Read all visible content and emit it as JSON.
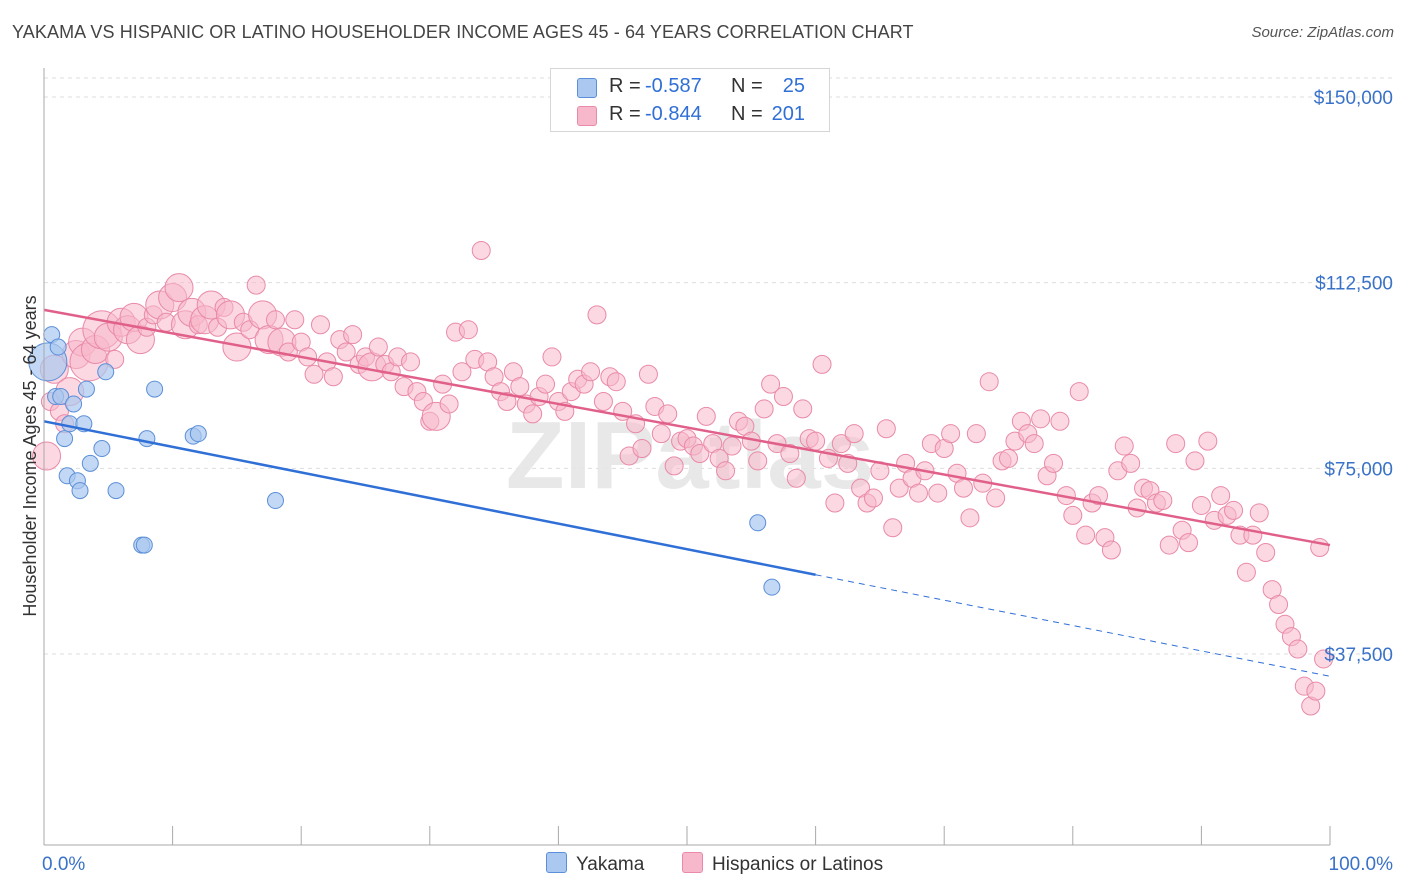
{
  "title": "YAKAMA VS HISPANIC OR LATINO HOUSEHOLDER INCOME AGES 45 - 64 YEARS CORRELATION CHART",
  "source": "Source: ZipAtlas.com",
  "legend": {
    "rows": [
      {
        "r_label": "R =",
        "r_value": "-0.587",
        "n_label": "N =",
        "n_value": "25"
      },
      {
        "r_label": "R =",
        "r_value": "-0.844",
        "n_label": "N =",
        "n_value": "201"
      }
    ]
  },
  "bottom_legend": {
    "series1": "Yakama",
    "series2": "Hispanics or Latinos"
  },
  "colors": {
    "yakama_fill": "#aac8f0",
    "yakama_stroke": "#5b8fd8",
    "yakama_line": "#2f6fd6",
    "hispanic_fill": "#f7b8cb",
    "hispanic_stroke": "#e98aa8",
    "hispanic_line": "#e0608a",
    "axis_label_blue": "#3a72c8",
    "grid": "#dddddd"
  },
  "watermark": "ZIPatlas",
  "chart_data": {
    "type": "scatter",
    "xlabel": "",
    "ylabel": "Householder Income Ages 45 - 64 years",
    "x_tick_labels": [
      "0.0%",
      "100.0%"
    ],
    "y_tick_labels": [
      "$37,500",
      "$75,000",
      "$112,500",
      "$150,000"
    ],
    "y_ticks": [
      37500,
      75000,
      112500,
      150000
    ],
    "xlim": [
      0,
      100
    ],
    "ylim": [
      0,
      155000
    ],
    "grid": true,
    "legend_position": "top-center",
    "series": [
      {
        "name": "Yakama",
        "trend": {
          "x0": 0,
          "y0": 84500,
          "x1": 60,
          "y1": 53500,
          "dashed_to_x": 100,
          "dashed_to_y": 33000
        },
        "points": [
          [
            0.3,
            96500,
            3
          ],
          [
            0.6,
            102000,
            1
          ],
          [
            0.9,
            89500,
            1
          ],
          [
            1.1,
            99500,
            1
          ],
          [
            1.3,
            89500,
            1
          ],
          [
            1.6,
            81000,
            1
          ],
          [
            1.8,
            73500,
            1
          ],
          [
            2.0,
            84000,
            1
          ],
          [
            2.3,
            88000,
            1
          ],
          [
            2.6,
            72500,
            1
          ],
          [
            2.8,
            70500,
            1
          ],
          [
            3.1,
            84000,
            1
          ],
          [
            3.3,
            91000,
            1
          ],
          [
            3.6,
            76000,
            1
          ],
          [
            4.5,
            79000,
            1
          ],
          [
            4.8,
            94500,
            1
          ],
          [
            5.6,
            70500,
            1
          ],
          [
            7.6,
            59500,
            1
          ],
          [
            7.8,
            59500,
            1
          ],
          [
            8.0,
            81000,
            1
          ],
          [
            8.6,
            91000,
            1
          ],
          [
            11.6,
            81500,
            1
          ],
          [
            12.0,
            82000,
            1
          ],
          [
            18.0,
            68500,
            1
          ],
          [
            55.5,
            64000,
            1
          ],
          [
            56.6,
            51000,
            1
          ]
        ]
      },
      {
        "name": "Hispanics or Latinos",
        "trend": {
          "x0": 0,
          "y0": 107000,
          "x1": 100,
          "y1": 59500
        },
        "points": [
          [
            0.2,
            77500,
            2
          ],
          [
            0.5,
            88500,
            1
          ],
          [
            0.8,
            95000,
            2
          ],
          [
            1.2,
            86500,
            1
          ],
          [
            1.6,
            84000,
            1
          ],
          [
            2.0,
            90500,
            2
          ],
          [
            2.5,
            98000,
            2
          ],
          [
            3.0,
            100500,
            2
          ],
          [
            3.5,
            96500,
            3
          ],
          [
            4.0,
            99000,
            2
          ],
          [
            4.5,
            103000,
            3
          ],
          [
            5.0,
            101500,
            2
          ],
          [
            5.5,
            97000,
            1
          ],
          [
            6.0,
            104500,
            2
          ],
          [
            6.5,
            103000,
            2
          ],
          [
            7.0,
            105500,
            2
          ],
          [
            7.5,
            101000,
            2
          ],
          [
            8.0,
            103500,
            1
          ],
          [
            8.5,
            106000,
            1
          ],
          [
            9.0,
            108000,
            2
          ],
          [
            9.5,
            104500,
            1
          ],
          [
            10.0,
            109500,
            2
          ],
          [
            10.5,
            111500,
            2
          ],
          [
            11.0,
            104000,
            2
          ],
          [
            11.5,
            106500,
            2
          ],
          [
            12.0,
            104000,
            1
          ],
          [
            12.5,
            105000,
            2
          ],
          [
            13.0,
            108000,
            2
          ],
          [
            13.5,
            103500,
            1
          ],
          [
            14.0,
            107500,
            1
          ],
          [
            14.5,
            106000,
            2
          ],
          [
            15.0,
            99500,
            2
          ],
          [
            15.5,
            104500,
            1
          ],
          [
            16.0,
            103000,
            1
          ],
          [
            16.5,
            112000,
            1
          ],
          [
            17.0,
            106000,
            2
          ],
          [
            17.5,
            101000,
            2
          ],
          [
            18.0,
            105000,
            1
          ],
          [
            18.5,
            100500,
            2
          ],
          [
            19.0,
            98500,
            1
          ],
          [
            19.5,
            105000,
            1
          ],
          [
            20.0,
            100500,
            1
          ],
          [
            20.5,
            97500,
            1
          ],
          [
            21.0,
            94000,
            1
          ],
          [
            21.5,
            104000,
            1
          ],
          [
            22.0,
            96500,
            1
          ],
          [
            22.5,
            93500,
            1
          ],
          [
            23.0,
            101000,
            1
          ],
          [
            23.5,
            98500,
            1
          ],
          [
            24.0,
            102000,
            1
          ],
          [
            24.5,
            96000,
            1
          ],
          [
            25.0,
            97500,
            1
          ],
          [
            25.5,
            95500,
            2
          ],
          [
            26.0,
            99500,
            1
          ],
          [
            26.5,
            96000,
            1
          ],
          [
            27.0,
            94500,
            1
          ],
          [
            27.5,
            97500,
            1
          ],
          [
            28.0,
            91500,
            1
          ],
          [
            28.5,
            96500,
            1
          ],
          [
            29.0,
            90500,
            1
          ],
          [
            29.5,
            88500,
            1
          ],
          [
            30.0,
            84500,
            1
          ],
          [
            30.5,
            85500,
            2
          ],
          [
            31.0,
            92000,
            1
          ],
          [
            31.5,
            88000,
            1
          ],
          [
            32.0,
            102500,
            1
          ],
          [
            32.5,
            94500,
            1
          ],
          [
            33.0,
            103000,
            1
          ],
          [
            33.5,
            97000,
            1
          ],
          [
            34.0,
            119000,
            1
          ],
          [
            34.5,
            96500,
            1
          ],
          [
            35.0,
            93500,
            1
          ],
          [
            35.5,
            90500,
            1
          ],
          [
            36.0,
            88500,
            1
          ],
          [
            36.5,
            94500,
            1
          ],
          [
            37.0,
            91500,
            1
          ],
          [
            37.5,
            88000,
            1
          ],
          [
            38.0,
            86000,
            1
          ],
          [
            38.5,
            89500,
            1
          ],
          [
            39.0,
            92000,
            1
          ],
          [
            39.5,
            97500,
            1
          ],
          [
            40.0,
            88500,
            1
          ],
          [
            40.5,
            86500,
            1
          ],
          [
            41.0,
            90500,
            1
          ],
          [
            41.5,
            93000,
            1
          ],
          [
            42.0,
            92000,
            1
          ],
          [
            42.5,
            94500,
            1
          ],
          [
            43.0,
            106000,
            1
          ],
          [
            43.5,
            88500,
            1
          ],
          [
            44.0,
            93500,
            1
          ],
          [
            44.5,
            92500,
            1
          ],
          [
            45.0,
            86500,
            1
          ],
          [
            45.5,
            77500,
            1
          ],
          [
            46.0,
            84000,
            1
          ],
          [
            46.5,
            79000,
            1
          ],
          [
            47.0,
            94000,
            1
          ],
          [
            47.5,
            87500,
            1
          ],
          [
            48.0,
            82000,
            1
          ],
          [
            48.5,
            86000,
            1
          ],
          [
            49.0,
            75500,
            1
          ],
          [
            49.5,
            80500,
            1
          ],
          [
            50.0,
            81000,
            1
          ],
          [
            50.5,
            79500,
            1
          ],
          [
            51.0,
            78000,
            1
          ],
          [
            51.5,
            85500,
            1
          ],
          [
            52.0,
            80000,
            1
          ],
          [
            52.5,
            77000,
            1
          ],
          [
            53.0,
            74500,
            1
          ],
          [
            53.5,
            79500,
            1
          ],
          [
            54.0,
            84500,
            1
          ],
          [
            54.5,
            83500,
            1
          ],
          [
            55.0,
            80500,
            1
          ],
          [
            55.5,
            76500,
            1
          ],
          [
            56.0,
            87000,
            1
          ],
          [
            56.5,
            92000,
            1
          ],
          [
            57.0,
            80000,
            1
          ],
          [
            57.5,
            89500,
            1
          ],
          [
            58.0,
            78000,
            1
          ],
          [
            58.5,
            73000,
            1
          ],
          [
            59.0,
            87000,
            1
          ],
          [
            59.5,
            81000,
            1
          ],
          [
            60.0,
            80500,
            1
          ],
          [
            60.5,
            96000,
            1
          ],
          [
            61.0,
            77000,
            1
          ],
          [
            61.5,
            68000,
            1
          ],
          [
            62.0,
            80000,
            1
          ],
          [
            62.5,
            76000,
            1
          ],
          [
            63.0,
            82000,
            1
          ],
          [
            63.5,
            71000,
            1
          ],
          [
            64.0,
            68000,
            1
          ],
          [
            64.5,
            69000,
            1
          ],
          [
            65.0,
            74500,
            1
          ],
          [
            65.5,
            83000,
            1
          ],
          [
            66.0,
            63000,
            1
          ],
          [
            66.5,
            71000,
            1
          ],
          [
            67.0,
            76000,
            1
          ],
          [
            67.5,
            73000,
            1
          ],
          [
            68.0,
            70000,
            1
          ],
          [
            68.5,
            74500,
            1
          ],
          [
            69.0,
            80000,
            1
          ],
          [
            69.5,
            70000,
            1
          ],
          [
            70.0,
            79000,
            1
          ],
          [
            70.5,
            82000,
            1
          ],
          [
            71.0,
            74000,
            1
          ],
          [
            71.5,
            71000,
            1
          ],
          [
            72.0,
            65000,
            1
          ],
          [
            72.5,
            82000,
            1
          ],
          [
            73.0,
            72000,
            1
          ],
          [
            73.5,
            92500,
            1
          ],
          [
            74.0,
            69000,
            1
          ],
          [
            74.5,
            76500,
            1
          ],
          [
            75.0,
            77000,
            1
          ],
          [
            75.5,
            80500,
            1
          ],
          [
            76.0,
            84500,
            1
          ],
          [
            76.5,
            82000,
            1
          ],
          [
            77.0,
            80000,
            1
          ],
          [
            77.5,
            85000,
            1
          ],
          [
            78.0,
            73500,
            1
          ],
          [
            78.5,
            76000,
            1
          ],
          [
            79.0,
            84500,
            1
          ],
          [
            79.5,
            69500,
            1
          ],
          [
            80.0,
            65500,
            1
          ],
          [
            80.5,
            90500,
            1
          ],
          [
            81.0,
            61500,
            1
          ],
          [
            81.5,
            68000,
            1
          ],
          [
            82.0,
            69500,
            1
          ],
          [
            82.5,
            61000,
            1
          ],
          [
            83.0,
            58500,
            1
          ],
          [
            83.5,
            74500,
            1
          ],
          [
            84.0,
            79500,
            1
          ],
          [
            84.5,
            76000,
            1
          ],
          [
            85.0,
            67000,
            1
          ],
          [
            85.5,
            71000,
            1
          ],
          [
            86.0,
            70500,
            1
          ],
          [
            86.5,
            68000,
            1
          ],
          [
            87.0,
            68500,
            1
          ],
          [
            87.5,
            59500,
            1
          ],
          [
            88.0,
            80000,
            1
          ],
          [
            88.5,
            62500,
            1
          ],
          [
            89.0,
            60000,
            1
          ],
          [
            89.5,
            76500,
            1
          ],
          [
            90.0,
            67500,
            1
          ],
          [
            90.5,
            80500,
            1
          ],
          [
            91.0,
            64500,
            1
          ],
          [
            91.5,
            69500,
            1
          ],
          [
            92.0,
            65500,
            1
          ],
          [
            92.5,
            66500,
            1
          ],
          [
            93.0,
            61500,
            1
          ],
          [
            93.5,
            54000,
            1
          ],
          [
            94.0,
            61500,
            1
          ],
          [
            94.5,
            66000,
            1
          ],
          [
            95.0,
            58000,
            1
          ],
          [
            95.5,
            50500,
            1
          ],
          [
            96.0,
            47500,
            1
          ],
          [
            96.5,
            43500,
            1
          ],
          [
            97.0,
            41000,
            1
          ],
          [
            97.5,
            38500,
            1
          ],
          [
            98.0,
            31000,
            1
          ],
          [
            98.5,
            27000,
            1
          ],
          [
            98.9,
            30000,
            1
          ],
          [
            99.2,
            59000,
            1
          ],
          [
            99.5,
            36500,
            1
          ]
        ]
      }
    ]
  }
}
